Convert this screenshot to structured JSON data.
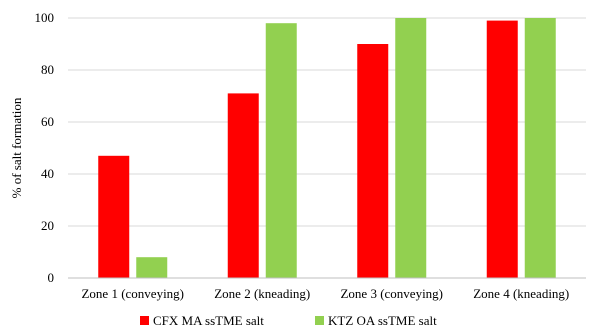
{
  "chart_data": {
    "type": "bar",
    "categories": [
      "Zone 1 (conveying)",
      "Zone 2 (kneading)",
      "Zone 3 (conveying)",
      "Zone 4 (kneading)"
    ],
    "series": [
      {
        "name": "CFX MA ssTME salt",
        "color": "#ff0000",
        "values": [
          47,
          71,
          90,
          99
        ]
      },
      {
        "name": "KTZ OA ssTME salt",
        "color": "#92d050",
        "values": [
          8,
          98,
          100,
          100
        ]
      }
    ],
    "title": "",
    "xlabel": "",
    "ylabel": "% of salt formation",
    "ylim": [
      0,
      100
    ],
    "yticks": [
      0,
      20,
      40,
      60,
      80,
      100
    ],
    "grid": true,
    "legend_position": "bottom"
  }
}
